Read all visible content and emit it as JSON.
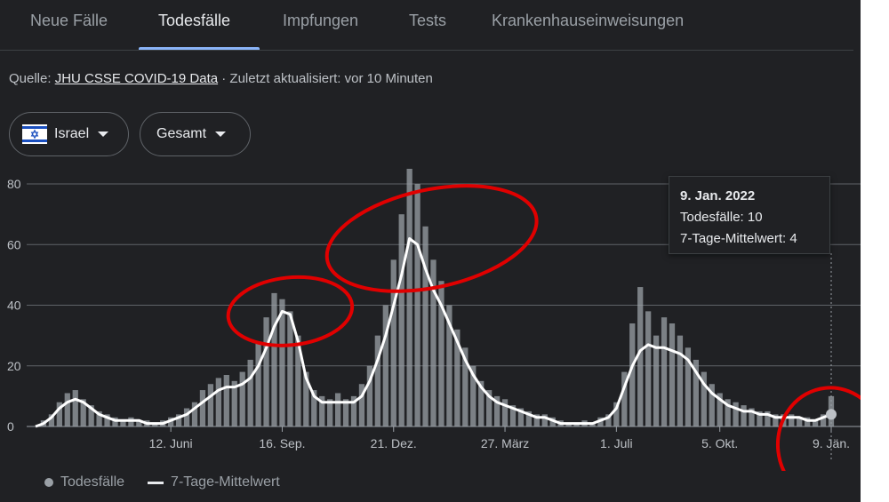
{
  "tabs": [
    {
      "label": "Neue Fälle",
      "active": false
    },
    {
      "label": "Todesfälle",
      "active": true
    },
    {
      "label": "Impfungen",
      "active": false
    },
    {
      "label": "Tests",
      "active": false
    },
    {
      "label": "Krankenhauseinweisungen",
      "active": false
    }
  ],
  "source": {
    "prefix": "Quelle: ",
    "link": "JHU CSSE COVID-19 Data",
    "suffix": " · Zuletzt aktualisiert: vor 10 Minuten"
  },
  "filters": {
    "country": "Israel",
    "country_flag_icon": "israel-flag-icon",
    "scope": "Gesamt"
  },
  "tooltip": {
    "date": "9. Jan. 2022",
    "deaths_label": "Todesfälle: 10",
    "avg_label": "7-Tage-Mittelwert: 4"
  },
  "legend": {
    "deaths": "Todesfälle",
    "avg": "7-Tage-Mittelwert"
  },
  "colors": {
    "background": "#202124",
    "bars": "#9aa0a6",
    "avg_line": "#ffffff",
    "annotation": "#e00000",
    "tab_accent": "#8ab4f8"
  },
  "chart_data": {
    "type": "bar",
    "title": "",
    "xlabel": "",
    "ylabel": "",
    "ylim": [
      0,
      85
    ],
    "y_ticks": [
      0,
      20,
      40,
      60,
      80
    ],
    "x_ticks": [
      {
        "label": "12. Juni",
        "week": 17
      },
      {
        "label": "16. Sep.",
        "week": 31
      },
      {
        "label": "21. Dez.",
        "week": 45
      },
      {
        "label": "27. März",
        "week": 59
      },
      {
        "label": "1. Juli",
        "week": 73
      },
      {
        "label": "5. Okt.",
        "week": 86
      },
      {
        "label": "9. Jän.",
        "week": 100
      }
    ],
    "series": [
      {
        "name": "7-Tage-Mittelwert",
        "type": "line",
        "values": [
          0,
          1,
          3,
          6,
          8,
          9,
          8,
          6,
          4,
          3,
          2,
          2,
          2,
          2,
          1,
          1,
          1,
          2,
          3,
          4,
          6,
          8,
          10,
          12,
          13,
          13,
          14,
          16,
          20,
          26,
          33,
          38,
          37,
          28,
          16,
          10,
          8,
          8,
          8,
          8,
          8,
          10,
          15,
          22,
          30,
          40,
          50,
          62,
          60,
          52,
          45,
          40,
          34,
          28,
          22,
          17,
          13,
          10,
          8,
          7,
          6,
          5,
          4,
          3,
          3,
          2,
          1,
          1,
          1,
          1,
          1,
          2,
          3,
          6,
          13,
          20,
          25,
          27,
          26,
          26,
          25,
          24,
          22,
          18,
          14,
          11,
          9,
          7,
          6,
          5,
          5,
          4,
          4,
          3,
          3,
          3,
          3,
          2,
          2,
          3,
          4
        ]
      },
      {
        "name": "Todesfälle",
        "type": "bar",
        "values": [
          0,
          2,
          4,
          8,
          11,
          12,
          9,
          7,
          5,
          4,
          3,
          2,
          3,
          2,
          2,
          1,
          2,
          3,
          4,
          6,
          8,
          12,
          14,
          16,
          17,
          15,
          18,
          22,
          28,
          36,
          44,
          42,
          38,
          30,
          18,
          12,
          10,
          9,
          11,
          9,
          10,
          14,
          20,
          30,
          40,
          55,
          70,
          92,
          80,
          66,
          55,
          48,
          40,
          32,
          26,
          20,
          15,
          12,
          10,
          9,
          7,
          6,
          5,
          4,
          4,
          3,
          2,
          1,
          1,
          2,
          1,
          3,
          4,
          8,
          18,
          34,
          46,
          38,
          30,
          36,
          34,
          30,
          26,
          22,
          18,
          14,
          11,
          9,
          8,
          7,
          6,
          5,
          5,
          4,
          4,
          4,
          3,
          3,
          2,
          4,
          10
        ]
      }
    ],
    "annotations": [
      {
        "type": "circle",
        "week": 32,
        "value": 38
      },
      {
        "type": "circle",
        "week": 47,
        "value": 62
      },
      {
        "type": "circle",
        "week": 100,
        "value": 4
      }
    ]
  }
}
